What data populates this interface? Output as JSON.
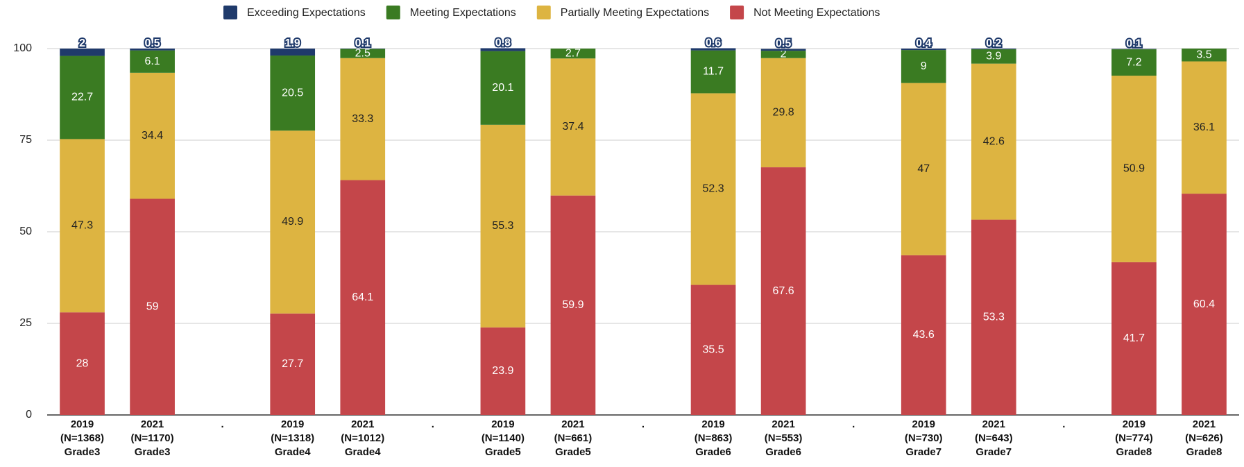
{
  "chart_data": {
    "type": "stacked_bar",
    "categories": [
      "2019\n(N=1368)\nGrade3",
      "2021\n(N=1170)\nGrade3",
      ".",
      "2019\n(N=1318)\nGrade4",
      "2021\n(N=1012)\nGrade4",
      ".",
      "2019\n(N=1140)\nGrade5",
      "2021\n(N=661)\nGrade5",
      ".",
      "2019\n(N=863)\nGrade6",
      "2021\n(N=553)\nGrade6",
      ".",
      "2019\n(N=730)\nGrade7",
      "2021\n(N=643)\nGrade7",
      ".",
      "2019\n(N=774)\nGrade8",
      "2021\n(N=626)\nGrade8"
    ],
    "series": [
      {
        "name": "Exceeding Expectations",
        "color": "#1f3a6b",
        "values": [
          2,
          0.5,
          null,
          1.9,
          0.1,
          null,
          0.8,
          null,
          null,
          0.6,
          0.5,
          null,
          0.4,
          0.2,
          null,
          0.1,
          null
        ]
      },
      {
        "name": "Meeting Expectations",
        "color": "#3a7b22",
        "values": [
          22.7,
          6.1,
          null,
          20.5,
          2.5,
          null,
          20.1,
          2.7,
          null,
          11.7,
          2,
          null,
          9,
          3.9,
          null,
          7.2,
          3.5
        ]
      },
      {
        "name": "Partially Meeting Expectations",
        "color": "#ddb441",
        "values": [
          47.3,
          34.4,
          null,
          49.9,
          33.3,
          null,
          55.3,
          37.4,
          null,
          52.3,
          29.8,
          null,
          47,
          42.6,
          null,
          50.9,
          36.1
        ]
      },
      {
        "name": "Not Meeting Expectations",
        "color": "#c4464a",
        "values": [
          28,
          59,
          null,
          27.7,
          64.1,
          null,
          23.9,
          59.9,
          null,
          35.5,
          67.6,
          null,
          43.6,
          53.3,
          null,
          41.7,
          60.4
        ]
      }
    ],
    "ylim": [
      0,
      100
    ],
    "yticks": [
      0,
      25,
      50,
      75,
      100
    ],
    "grid": true,
    "legend": "top"
  }
}
